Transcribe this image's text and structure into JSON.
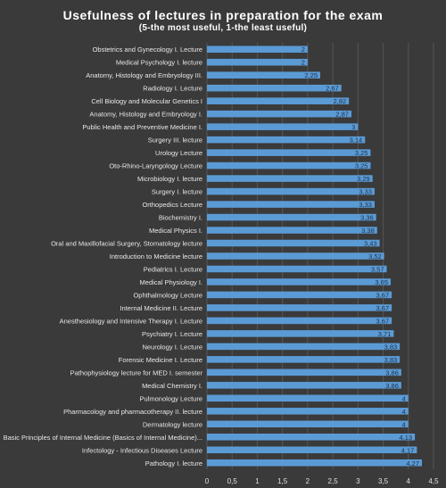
{
  "chart_data": {
    "type": "bar",
    "orientation": "horizontal",
    "title": "Usefulness of lectures in preparation for the exam",
    "subtitle": "(5-the most useful, 1-the least useful)",
    "xlim": [
      0,
      4.5
    ],
    "xticks": [
      "0",
      "0,5",
      "1",
      "1,5",
      "2",
      "2,5",
      "3",
      "3,5",
      "4",
      "4,5"
    ],
    "grid": true,
    "bar_color": "#5b9bd5",
    "categories": [
      "Obstetrics and Gynecology I. Lecture",
      "Medical Psychology I. lecture",
      "Anatomy, Histology and Embryology III.",
      "Radiology I. Lecture",
      "Cell Biology and Molecular Genetics I",
      "Anatomy, Histology and Embryology I.",
      "Public Health and Preventive Medicine I.",
      "Surgery III. lecture",
      "Urology Lecture",
      "Oto-Rhino-Laryngology Lecture",
      "Microbiology I. lecture",
      "Surgery I. lecture",
      "Orthopedics Lecture",
      "Biochemistry I.",
      "Medical Physics I.",
      "Oral and Maxillofacial Surgery, Stomatology lecture",
      "Introduction to Medicine lecture",
      "Pediatrics I. Lecture",
      "Medical Physiology I.",
      "Ophthalmology Lecture",
      "Internal Medicine II. Lecture",
      "Anesthesiology and Intensive Therapy I. Lecture",
      "Psychiatry I. Lecture",
      "Neurology I. Lecture",
      "Forensic Medicine I. Lecture",
      "Pathophysiology lecture for MED I. semester",
      "Medical Chemistry I.",
      "Pulmonology Lecture",
      "Pharmacology and pharmacotherapy II. lecture",
      "Dermatology lecture",
      "Basic Principles of Internal Medicine (Basics of Internal Medicine)...",
      "Infectology - Infectious Diseases Lecture",
      "Pathology I. lecture"
    ],
    "values": [
      2,
      2,
      2.25,
      2.67,
      2.82,
      2.87,
      3,
      3.14,
      3.25,
      3.25,
      3.29,
      3.33,
      3.33,
      3.36,
      3.38,
      3.43,
      3.52,
      3.57,
      3.65,
      3.67,
      3.67,
      3.67,
      3.71,
      3.83,
      3.83,
      3.86,
      3.86,
      4,
      4,
      4,
      4.13,
      4.17,
      4.27
    ],
    "value_labels": [
      "2",
      "2",
      "2,25",
      "2,67",
      "2,82",
      "2,87",
      "3",
      "3,14",
      "3,25",
      "3,25",
      "3,29",
      "3,33",
      "3,33",
      "3,36",
      "3,38",
      "3,43",
      "3,52",
      "3,57",
      "3,65",
      "3,67",
      "3,67",
      "3,67",
      "3,71",
      "3,83",
      "3,83",
      "3,86",
      "3,86",
      "4",
      "4",
      "4",
      "4,13",
      "4,17",
      "4,27"
    ]
  }
}
